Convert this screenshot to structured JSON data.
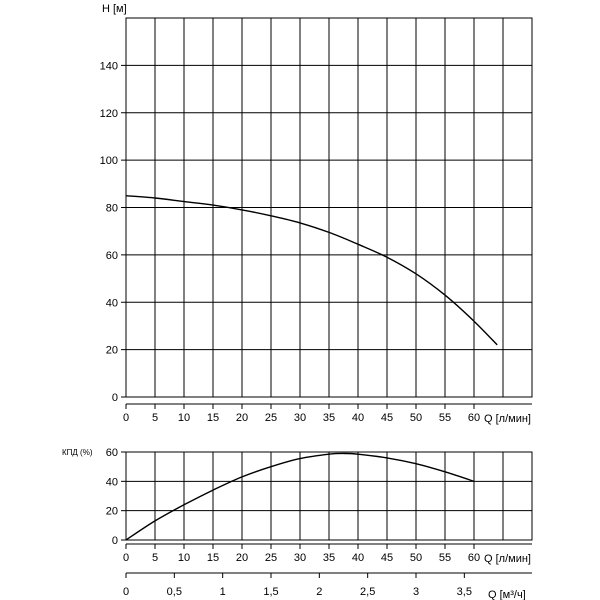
{
  "chart_data": [
    {
      "type": "line",
      "ylabel": "H [м]",
      "xlabel": "Q [л/мин]",
      "xlim": [
        0,
        70
      ],
      "ylim": [
        0,
        160
      ],
      "xticks": [
        "0",
        "5",
        "10",
        "15",
        "20",
        "25",
        "30",
        "35",
        "40",
        "45",
        "50",
        "55",
        "60"
      ],
      "yticks": [
        "0",
        "20",
        "40",
        "60",
        "80",
        "100",
        "120",
        "140"
      ],
      "grid": true,
      "series": [
        {
          "x": [
            0,
            5,
            10,
            15,
            20,
            25,
            30,
            35,
            40,
            45,
            50,
            55,
            60,
            64
          ],
          "y": [
            85,
            84,
            82.5,
            81,
            79,
            76.5,
            73.5,
            69.5,
            64.5,
            59,
            52,
            43,
            32,
            22
          ]
        }
      ]
    },
    {
      "type": "line",
      "ylabel": "КПД (%)",
      "xlabel": "Q [л/мин]",
      "xlim": [
        0,
        70
      ],
      "ylim": [
        0,
        60
      ],
      "xticks": [
        "0",
        "5",
        "10",
        "15",
        "20",
        "25",
        "30",
        "35",
        "40",
        "45",
        "50",
        "55",
        "60"
      ],
      "yticks": [
        "0",
        "20",
        "40",
        "60"
      ],
      "grid": true,
      "series": [
        {
          "x": [
            0,
            5,
            10,
            15,
            20,
            25,
            30,
            35,
            38,
            40,
            45,
            50,
            55,
            60
          ],
          "y": [
            0,
            13,
            24,
            34,
            43,
            50,
            55.5,
            58.5,
            59,
            58.5,
            56,
            52,
            46.5,
            40
          ]
        }
      ],
      "secondary_xaxis": {
        "xlabel": "Q [м³/ч]",
        "max": 4.2,
        "ticks": [
          "0",
          "0,5",
          "1",
          "1,5",
          "2",
          "2,5",
          "3",
          "3,5"
        ],
        "values": [
          0,
          0.5,
          1,
          1.5,
          2,
          2.5,
          3,
          3.5
        ]
      }
    }
  ]
}
